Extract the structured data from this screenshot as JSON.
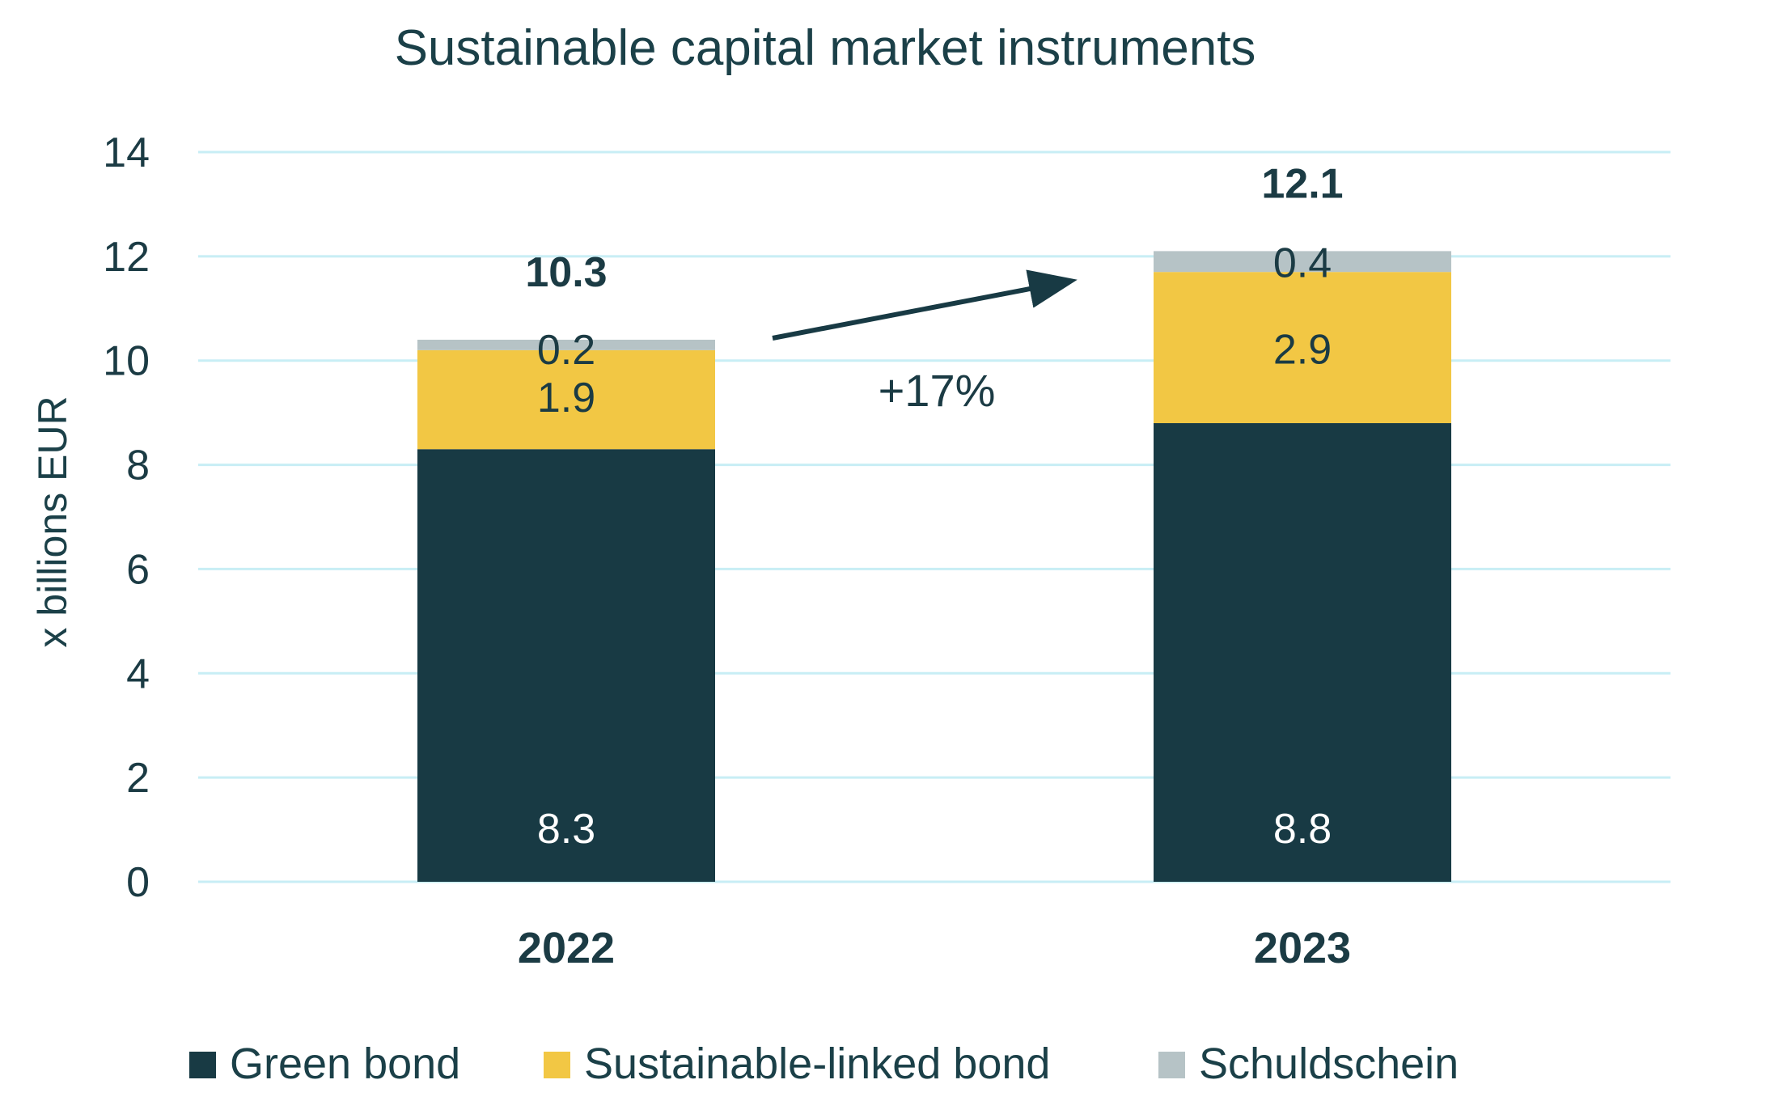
{
  "chart_data": {
    "type": "bar",
    "stacked": true,
    "title": "Sustainable capital market instruments",
    "xlabel": "",
    "ylabel": "x billions EUR",
    "ylim": [
      0,
      14
    ],
    "yticks": [
      0,
      2,
      4,
      6,
      8,
      10,
      12,
      14
    ],
    "ytick_labels": [
      "0",
      "2",
      "4",
      "6",
      "8",
      "10",
      "12",
      "14"
    ],
    "grid": true,
    "legend_position": "bottom",
    "categories": [
      "2022",
      "2023"
    ],
    "series": [
      {
        "name": "Green bond",
        "values": [
          8.3,
          8.8
        ],
        "labels": [
          "8.3",
          "8.8"
        ],
        "color": "#183a44",
        "label_color": "#ffffff"
      },
      {
        "name": "Sustainable-linked bond",
        "values": [
          1.9,
          2.9
        ],
        "labels": [
          "1.9",
          "2.9"
        ],
        "color": "#f2c744",
        "label_color": "#1b3b44"
      },
      {
        "name": "Schuldschein",
        "values": [
          0.2,
          0.4
        ],
        "labels": [
          "0.2",
          "0.4"
        ],
        "color": "#b6c3c6",
        "label_color": "#1b3b44"
      }
    ],
    "totals": [
      "10.3",
      "12.1"
    ],
    "annotations": [
      {
        "type": "arrow",
        "from_category": "2022",
        "to_category": "2023",
        "text": "+17%"
      }
    ],
    "colors": {
      "grid": "#c8eef5",
      "text": "#1b3b44",
      "arrow": "#183a44"
    }
  }
}
